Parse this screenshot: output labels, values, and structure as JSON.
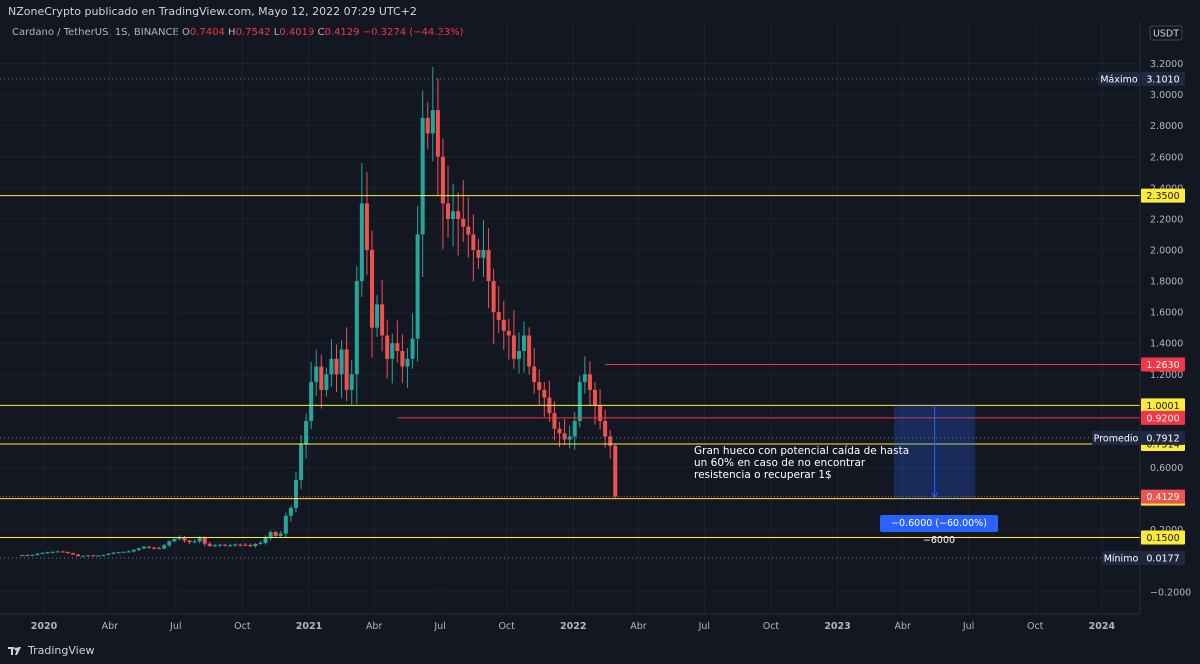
{
  "header": {
    "published": "NZoneCrypto publicado en TradingView.com, Mayo 12, 2022 07:29 UTC+2",
    "symbol_name": "Cardano / TetherUS, 1S, BINANCE",
    "o_label": "O",
    "o_value": "0.7404",
    "h_label": "H",
    "h_value": "0.7542",
    "l_label": "L",
    "l_value": "0.4019",
    "c_label": "C",
    "c_value": "0.4129",
    "change": "−0.3274 (−44.23%)"
  },
  "currency_badge": "USDT",
  "footer": {
    "brand": "TradingView"
  },
  "annotation": {
    "note": "Gran hueco con potencial caída de hasta un 60% en caso de no encontrar resistencia o recuperar 1$",
    "measure": "−0.6000 (−60.00%) −6000"
  },
  "colors": {
    "background": "#131722",
    "up": "#26a69a",
    "down": "#ef5350",
    "yellow_line": "#ffeb3b",
    "red_line": "#f23645",
    "measure": "#2962ff"
  },
  "chart_data": {
    "type": "candlestick",
    "interval": "weekly",
    "ylim": [
      -0.3,
      3.3
    ],
    "y_ticks": [
      3.2,
      3.0,
      2.8,
      2.6,
      2.4,
      2.2,
      2.0,
      1.8,
      1.6,
      1.4,
      1.2,
      0.6,
      0.2,
      -0.2
    ],
    "y_tick_labels": [
      "3.2000",
      "3.0000",
      "2.8000",
      "2.6000",
      "2.4000",
      "2.2000",
      "2.0000",
      "1.8000",
      "1.6000",
      "1.4000",
      "1.2000",
      "0.6000",
      "0.2000",
      "−0.2000"
    ],
    "x_ticks": [
      {
        "label": "2020",
        "date": "2020-01-01",
        "bold": true
      },
      {
        "label": "Abr",
        "date": "2020-04-01"
      },
      {
        "label": "Jul",
        "date": "2020-07-01"
      },
      {
        "label": "Oct",
        "date": "2020-10-01"
      },
      {
        "label": "2021",
        "date": "2021-01-01",
        "bold": true
      },
      {
        "label": "Abr",
        "date": "2021-04-01"
      },
      {
        "label": "Jul",
        "date": "2021-07-01"
      },
      {
        "label": "Oct",
        "date": "2021-10-01"
      },
      {
        "label": "2022",
        "date": "2022-01-01",
        "bold": true
      },
      {
        "label": "Abr",
        "date": "2022-04-01"
      },
      {
        "label": "Jul",
        "date": "2022-07-01"
      },
      {
        "label": "Oct",
        "date": "2022-10-01"
      },
      {
        "label": "2023",
        "date": "2023-01-01",
        "bold": true
      },
      {
        "label": "Abr",
        "date": "2023-04-01"
      },
      {
        "label": "Jul",
        "date": "2023-07-01"
      },
      {
        "label": "Oct",
        "date": "2023-10-01"
      },
      {
        "label": "2024",
        "date": "2024-01-01",
        "bold": true
      }
    ],
    "series_start": "2019-12-02",
    "close": [
      0.037,
      0.034,
      0.038,
      0.046,
      0.05,
      0.055,
      0.058,
      0.06,
      0.057,
      0.05,
      0.04,
      0.03,
      0.032,
      0.035,
      0.031,
      0.034,
      0.038,
      0.045,
      0.052,
      0.055,
      0.058,
      0.06,
      0.07,
      0.08,
      0.09,
      0.085,
      0.082,
      0.079,
      0.1,
      0.125,
      0.14,
      0.15,
      0.13,
      0.12,
      0.125,
      0.15,
      0.11,
      0.095,
      0.1,
      0.104,
      0.097,
      0.1,
      0.105,
      0.103,
      0.102,
      0.095,
      0.108,
      0.115,
      0.15,
      0.185,
      0.16,
      0.175,
      0.29,
      0.34,
      0.52,
      0.75,
      0.9,
      1.15,
      1.25,
      1.1,
      1.2,
      1.3,
      1.2,
      1.36,
      1.1,
      1.2,
      1.8,
      2.3,
      2.0,
      1.5,
      1.65,
      1.45,
      1.3,
      1.4,
      1.35,
      1.25,
      1.3,
      1.43,
      2.1,
      2.85,
      2.75,
      2.9,
      2.6,
      2.3,
      2.2,
      2.25,
      2.2,
      2.15,
      2.1,
      2.0,
      1.95,
      2.0,
      1.8,
      1.6,
      1.55,
      1.48,
      1.45,
      1.3,
      1.35,
      1.45,
      1.25,
      1.15,
      1.1,
      1.05,
      0.95,
      0.85,
      0.82,
      0.78,
      0.8,
      0.9,
      1.15,
      1.2,
      1.1,
      1.0,
      0.9,
      0.8,
      0.7404,
      0.4129
    ],
    "opens_only_where_known": {
      "last": 0.7404
    },
    "high_last": 0.7542,
    "low_last": 0.4019,
    "levels": {
      "max": {
        "label": "Máximo",
        "value": "3.1010"
      },
      "avg": {
        "label": "Promedio",
        "value": "0.7912"
      },
      "min": {
        "label": "Mínimo",
        "value": "0.0177"
      },
      "yellow": [
        "2.3500",
        "1.0001",
        "0.7514",
        "0.4000",
        "0.1500"
      ],
      "red": [
        "1.2630",
        "0.9200"
      ],
      "current": "0.4129"
    },
    "measure": {
      "from": 1.0,
      "to": 0.4,
      "change": "−0.6000 (−60.00%) −6000",
      "date_from": "2023-03-20",
      "date_to": "2023-07-10"
    }
  }
}
